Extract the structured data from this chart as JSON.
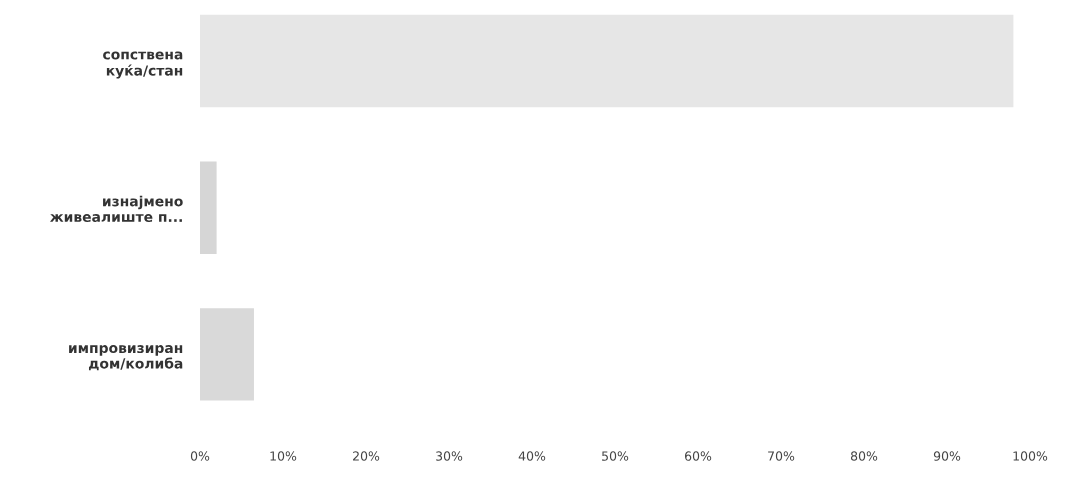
{
  "chart_data": {
    "type": "bar",
    "orientation": "horizontal",
    "categories": [
      "сопствена\nкуќа/стан",
      "изнајмено\nживеалиште п...",
      "импровизиран\nдом/колиба"
    ],
    "values": [
      98,
      2,
      6.5
    ],
    "colors": [
      "#e6e6e6",
      "#d6d6d6",
      "#d9d9d9"
    ],
    "xlim": [
      0,
      100
    ],
    "xticks": [
      {
        "value": 0,
        "label": "0%"
      },
      {
        "value": 10,
        "label": "10%"
      },
      {
        "value": 20,
        "label": "20%"
      },
      {
        "value": 30,
        "label": "30%"
      },
      {
        "value": 40,
        "label": "40%"
      },
      {
        "value": 50,
        "label": "50%"
      },
      {
        "value": 60,
        "label": "60%"
      },
      {
        "value": 70,
        "label": "70%"
      },
      {
        "value": 80,
        "label": "80%"
      },
      {
        "value": 90,
        "label": "90%"
      },
      {
        "value": 100,
        "label": "100%"
      }
    ],
    "grid": false
  }
}
